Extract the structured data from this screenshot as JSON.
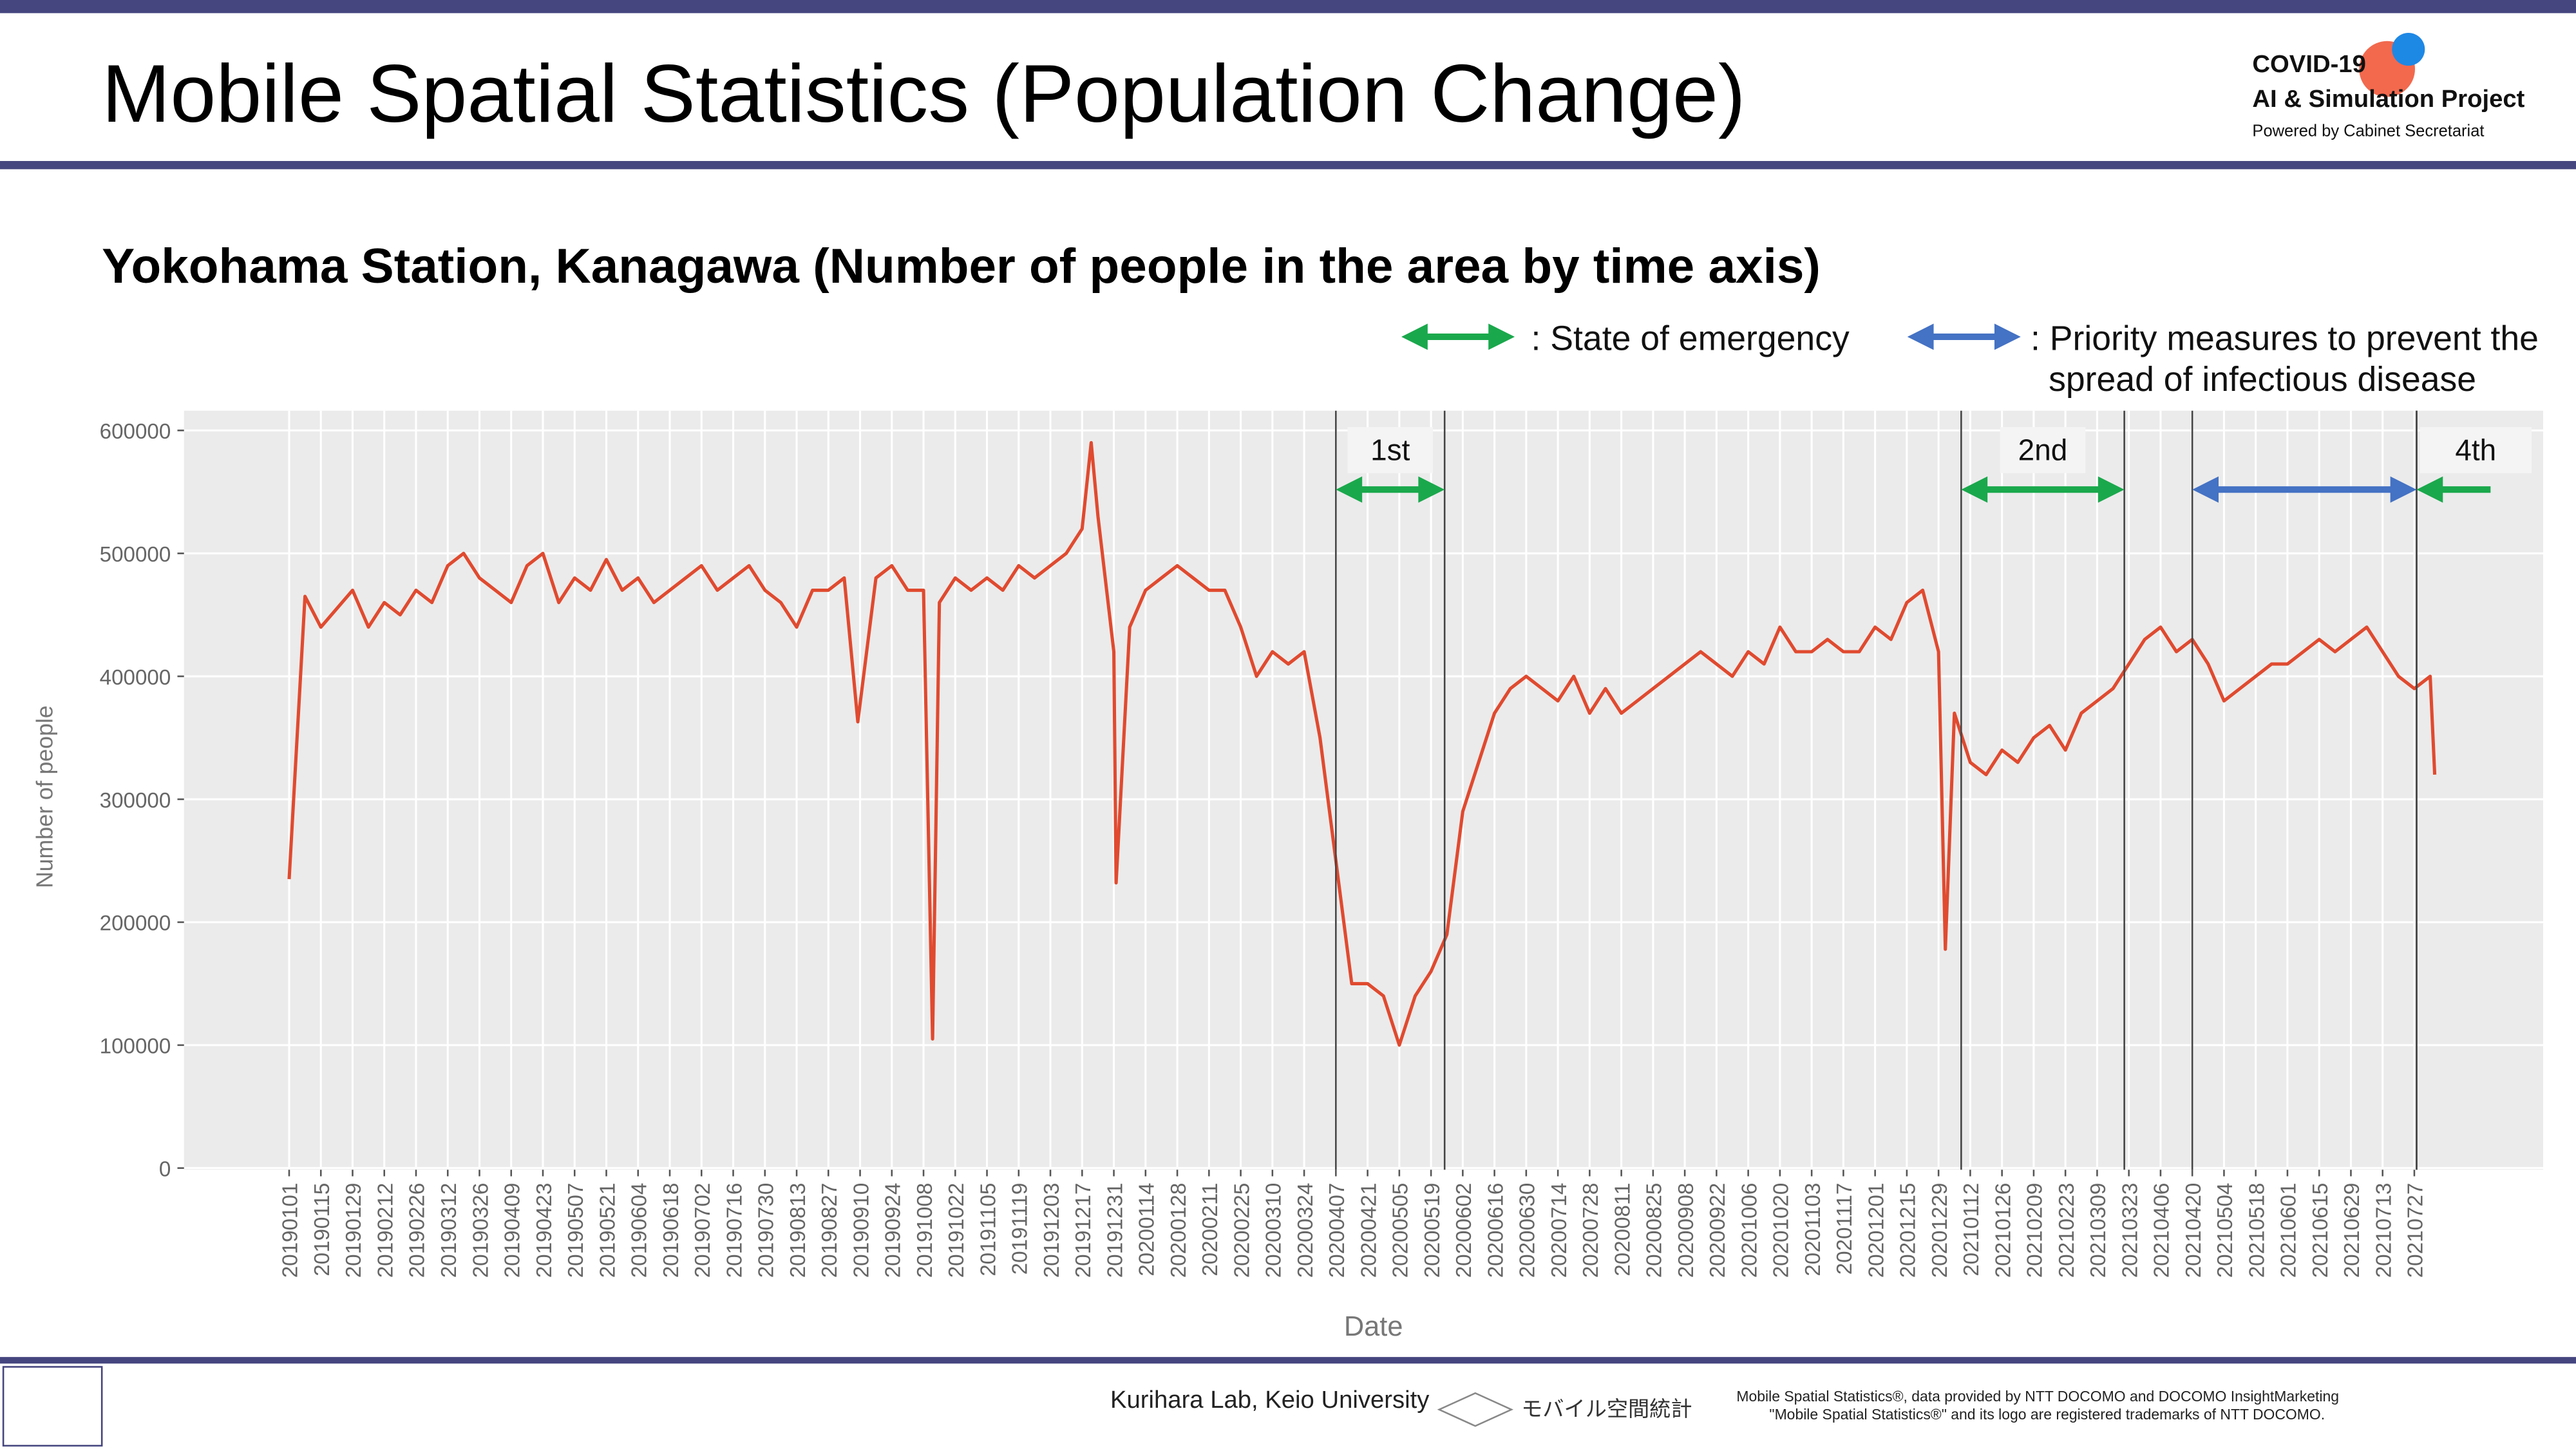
{
  "header": {
    "title": "Mobile Spatial Statistics (Population Change)",
    "logo": [
      "COVID-19",
      "AI & Simulation Project",
      "Powered by Cabinet Secretariat"
    ]
  },
  "footer": {
    "lab": "Kurihara Lab, Keio University",
    "brand": "モバイル空間統計",
    "credit": [
      "Mobile Spatial Statistics®, data provided by NTT DOCOMO and DOCOMO InsightMarketing",
      "\"Mobile Spatial Statistics®\" and its logo are registered trademarks of NTT DOCOMO."
    ]
  },
  "chart_data": {
    "type": "line",
    "title": "Yokohama Station, Kanagawa (Number of people in the area by time axis)",
    "x_label": "Date",
    "y_label": "Number of people",
    "color": "#e04a2f",
    "grid": true,
    "legend": [
      {
        "label": ": State of emergency",
        "color": "#1aa84c"
      },
      {
        "label": [
          ": Priority measures to prevent the",
          "spread of infectious disease"
        ],
        "color": "#4472c4"
      }
    ],
    "events": [
      {
        "label": "1st",
        "start": "20200407",
        "end": "20200525",
        "color": "#1aa84c"
      },
      {
        "label": "2nd",
        "start": "20210108",
        "end": "20210321",
        "color": "#1aa84c"
      },
      {
        "start": "20210420",
        "end": "20210728",
        "color": "#4472c4"
      },
      {
        "label": "4th",
        "start": "20210728",
        "end": null,
        "color": "#1aa84c"
      }
    ],
    "xlim": [
      "20190101",
      "20210805"
    ],
    "ylim": [
      0,
      600000
    ],
    "yticks": [
      0,
      100000,
      200000,
      300000,
      400000,
      500000,
      600000
    ],
    "xticks": [
      "20190101",
      "20190115",
      "20190129",
      "20190212",
      "20190226",
      "20190312",
      "20190326",
      "20190409",
      "20190423",
      "20190507",
      "20190521",
      "20190604",
      "20190618",
      "20190702",
      "20190716",
      "20190730",
      "20190813",
      "20190827",
      "20190910",
      "20190924",
      "20191008",
      "20191022",
      "20191105",
      "20191119",
      "20191203",
      "20191217",
      "20191231",
      "20200114",
      "20200128",
      "20200211",
      "20200225",
      "20200310",
      "20200324",
      "20200407",
      "20200421",
      "20200505",
      "20200519",
      "20200602",
      "20200616",
      "20200630",
      "20200714",
      "20200728",
      "20200811",
      "20200825",
      "20200908",
      "20200922",
      "20201006",
      "20201020",
      "20201103",
      "20201117",
      "20201201",
      "20201215",
      "20201229",
      "20210112",
      "20210126",
      "20210209",
      "20210223",
      "20210309",
      "20210323",
      "20210406",
      "20210420",
      "20210504",
      "20210518",
      "20210601",
      "20210615",
      "20210629",
      "20210713",
      "20210727"
    ],
    "x": [
      "20190101",
      "20190108",
      "20190115",
      "20190122",
      "20190129",
      "20190205",
      "20190212",
      "20190219",
      "20190226",
      "20190305",
      "20190312",
      "20190319",
      "20190326",
      "20190402",
      "20190409",
      "20190416",
      "20190423",
      "20190430",
      "20190507",
      "20190514",
      "20190521",
      "20190528",
      "20190604",
      "20190611",
      "20190618",
      "20190625",
      "20190702",
      "20190709",
      "20190716",
      "20190723",
      "20190730",
      "20190806",
      "20190813",
      "20190820",
      "20190827",
      "20190903",
      "20190909",
      "20190917",
      "20190924",
      "20191001",
      "20191008",
      "20191012",
      "20191015",
      "20191022",
      "20191029",
      "20191105",
      "20191112",
      "20191119",
      "20191126",
      "20191203",
      "20191210",
      "20191217",
      "20191221",
      "20191224",
      "20191231",
      "20200101",
      "20200107",
      "20200114",
      "20200121",
      "20200128",
      "20200204",
      "20200211",
      "20200218",
      "20200225",
      "20200303",
      "20200310",
      "20200317",
      "20200324",
      "20200331",
      "20200407",
      "20200414",
      "20200421",
      "20200428",
      "20200505",
      "20200512",
      "20200519",
      "20200526",
      "20200602",
      "20200609",
      "20200616",
      "20200623",
      "20200630",
      "20200707",
      "20200714",
      "20200721",
      "20200728",
      "20200804",
      "20200811",
      "20200818",
      "20200825",
      "20200901",
      "20200908",
      "20200915",
      "20200922",
      "20200929",
      "20201006",
      "20201013",
      "20201020",
      "20201027",
      "20201103",
      "20201110",
      "20201117",
      "20201124",
      "20201201",
      "20201208",
      "20201215",
      "20201222",
      "20201229",
      "20210101",
      "20210105",
      "20210112",
      "20210119",
      "20210126",
      "20210202",
      "20210209",
      "20210216",
      "20210223",
      "20210302",
      "20210309",
      "20210316",
      "20210323",
      "20210330",
      "20210406",
      "20210413",
      "20210420",
      "20210427",
      "20210504",
      "20210511",
      "20210518",
      "20210525",
      "20210601",
      "20210608",
      "20210615",
      "20210622",
      "20210629",
      "20210706",
      "20210713",
      "20210720",
      "20210727",
      "20210803",
      "20210805"
    ],
    "values": [
      235000,
      465000,
      440000,
      455000,
      470000,
      440000,
      460000,
      450000,
      470000,
      460000,
      490000,
      500000,
      480000,
      470000,
      460000,
      490000,
      500000,
      460000,
      480000,
      470000,
      495000,
      470000,
      480000,
      460000,
      470000,
      480000,
      490000,
      470000,
      480000,
      490000,
      470000,
      460000,
      440000,
      470000,
      470000,
      480000,
      363000,
      480000,
      490000,
      470000,
      470000,
      105000,
      460000,
      480000,
      470000,
      480000,
      470000,
      490000,
      480000,
      490000,
      500000,
      520000,
      590000,
      530000,
      420000,
      232000,
      440000,
      470000,
      480000,
      490000,
      480000,
      470000,
      470000,
      440000,
      400000,
      420000,
      410000,
      420000,
      350000,
      250000,
      150000,
      150000,
      140000,
      100000,
      140000,
      160000,
      190000,
      290000,
      330000,
      370000,
      390000,
      400000,
      390000,
      380000,
      400000,
      370000,
      390000,
      370000,
      380000,
      390000,
      400000,
      410000,
      420000,
      410000,
      400000,
      420000,
      410000,
      440000,
      420000,
      420000,
      430000,
      420000,
      420000,
      440000,
      430000,
      460000,
      470000,
      420000,
      178000,
      370000,
      330000,
      320000,
      340000,
      330000,
      350000,
      360000,
      340000,
      370000,
      380000,
      390000,
      410000,
      430000,
      440000,
      420000,
      430000,
      410000,
      380000,
      390000,
      400000,
      410000,
      410000,
      420000,
      430000,
      420000,
      430000,
      440000,
      420000,
      400000,
      390000,
      400000,
      320000
    ]
  }
}
